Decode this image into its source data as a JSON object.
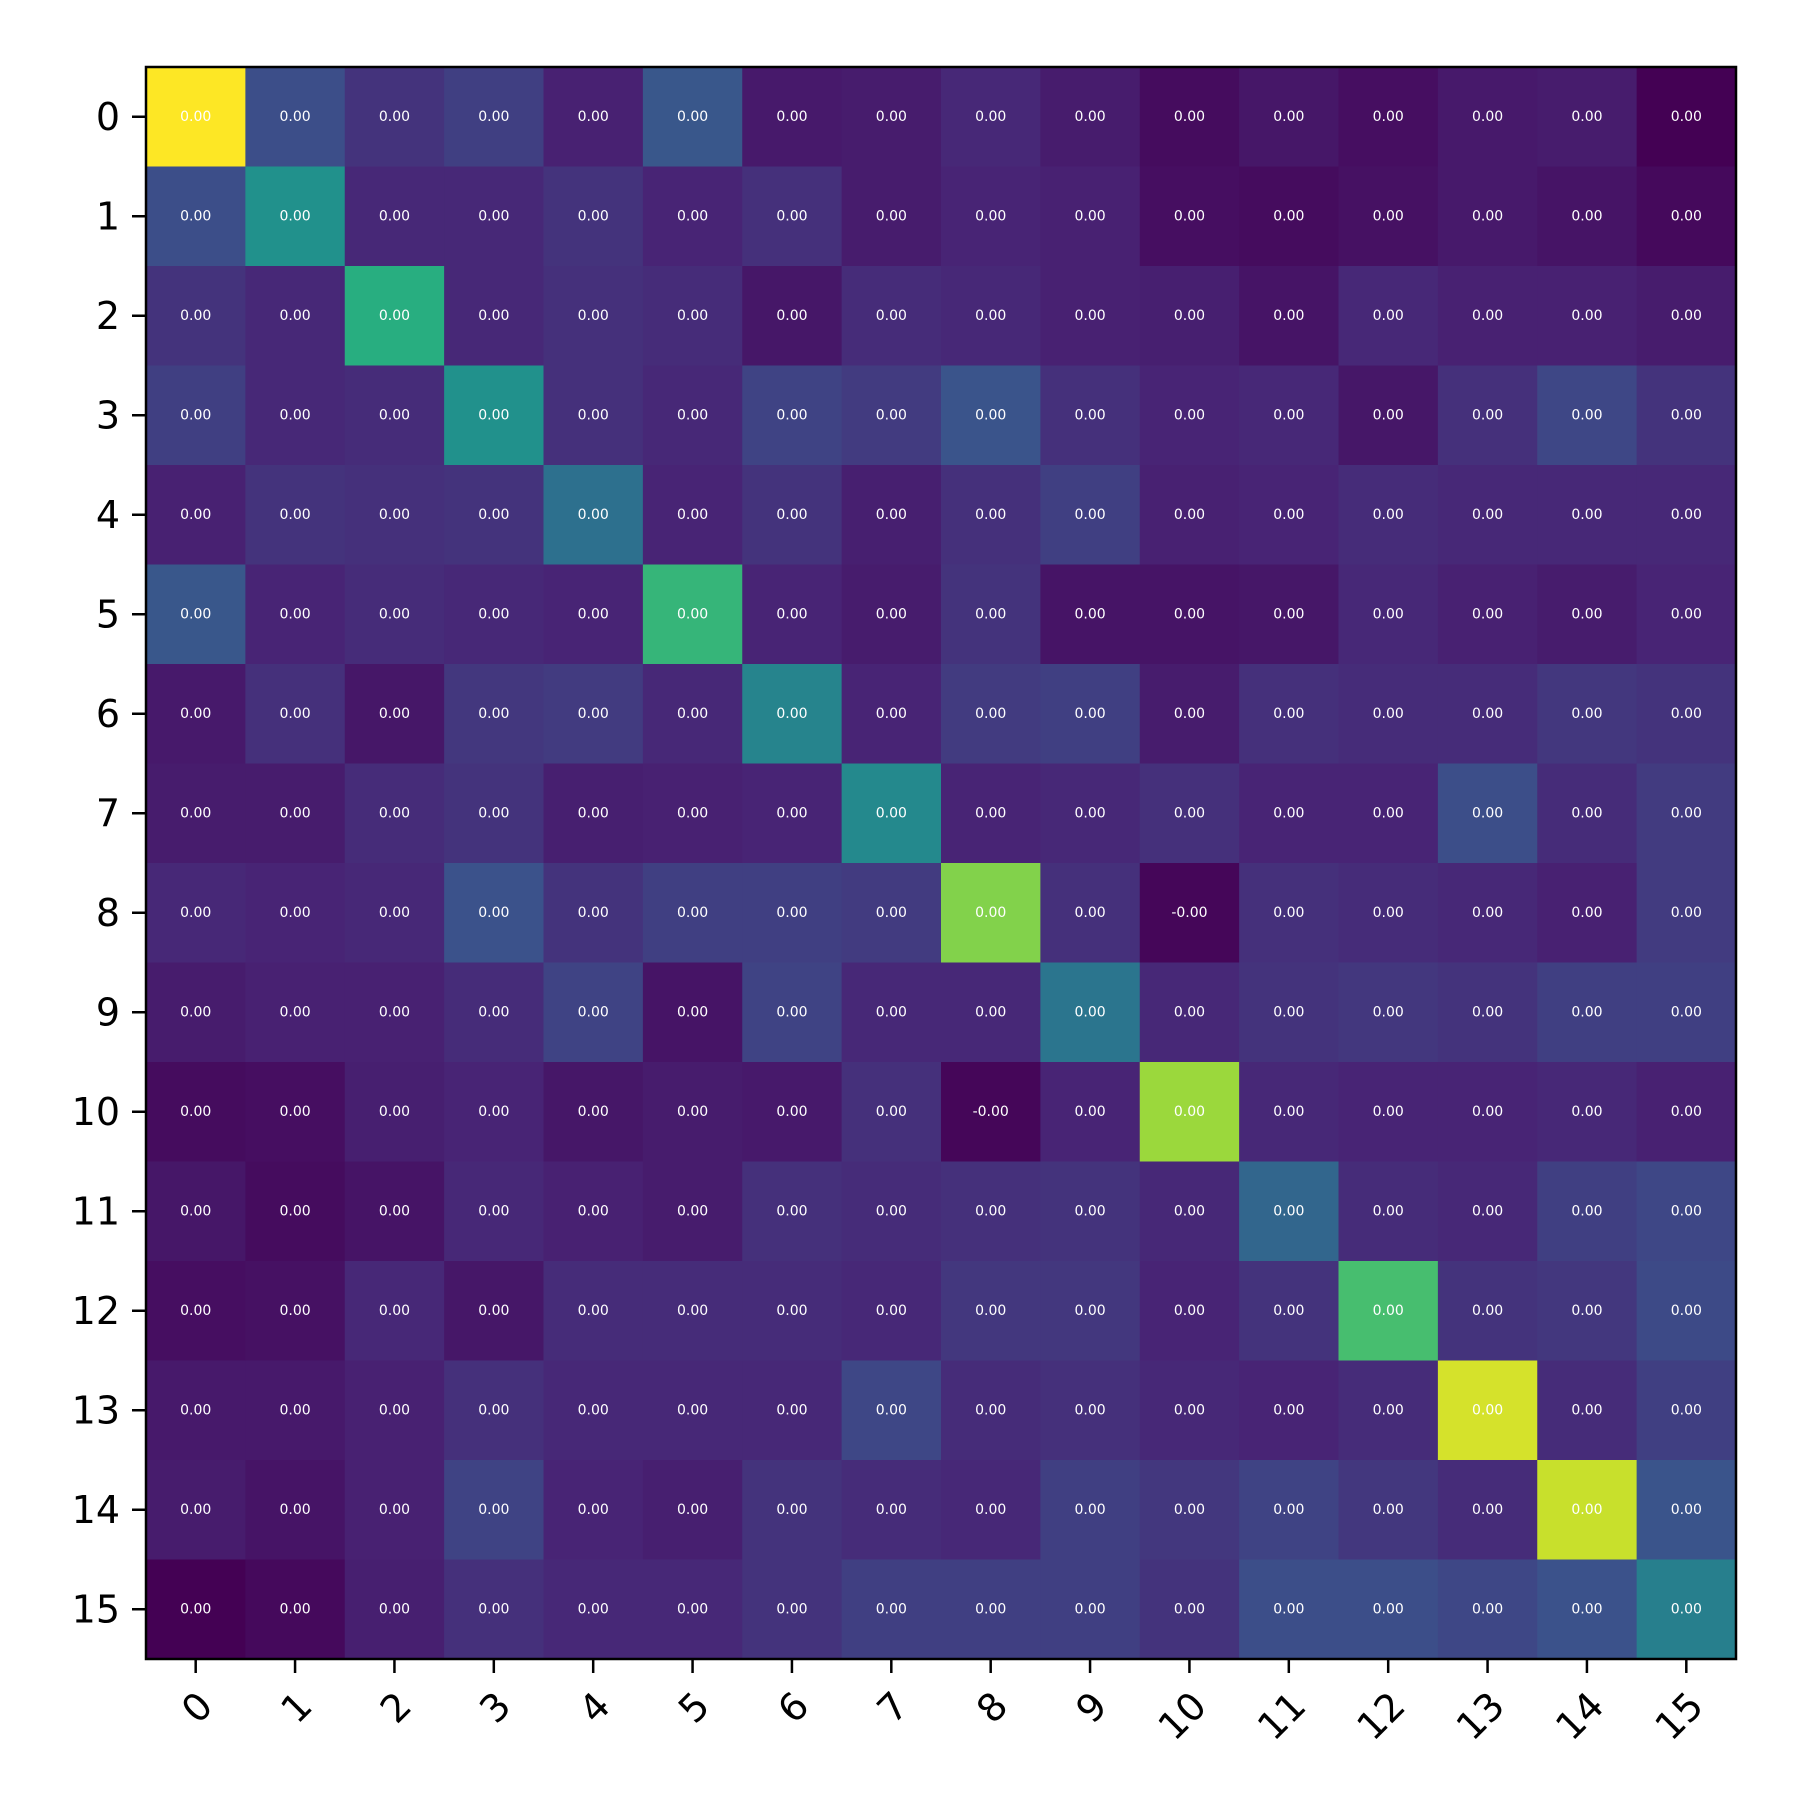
{
  "chart_data": {
    "type": "heatmap",
    "title": "",
    "xlabel": "",
    "ylabel": "",
    "colormap": "viridis",
    "x_categories": [
      "0",
      "1",
      "2",
      "3",
      "4",
      "5",
      "6",
      "7",
      "8",
      "9",
      "10",
      "11",
      "12",
      "13",
      "14",
      "15"
    ],
    "y_categories": [
      "0",
      "1",
      "2",
      "3",
      "4",
      "5",
      "6",
      "7",
      "8",
      "9",
      "10",
      "11",
      "12",
      "13",
      "14",
      "15"
    ],
    "color_levels": [
      [
        1.0,
        0.24,
        0.17,
        0.2,
        0.12,
        0.27,
        0.09,
        0.1,
        0.14,
        0.1,
        0.04,
        0.08,
        0.05,
        0.09,
        0.1,
        0.0
      ],
      [
        0.24,
        0.5,
        0.14,
        0.14,
        0.17,
        0.13,
        0.16,
        0.1,
        0.13,
        0.12,
        0.05,
        0.04,
        0.06,
        0.09,
        0.07,
        0.03
      ],
      [
        0.17,
        0.14,
        0.63,
        0.14,
        0.16,
        0.15,
        0.08,
        0.15,
        0.14,
        0.12,
        0.11,
        0.07,
        0.14,
        0.12,
        0.12,
        0.1
      ],
      [
        0.2,
        0.14,
        0.15,
        0.5,
        0.16,
        0.14,
        0.21,
        0.19,
        0.26,
        0.16,
        0.13,
        0.14,
        0.08,
        0.16,
        0.22,
        0.17
      ],
      [
        0.12,
        0.17,
        0.16,
        0.17,
        0.37,
        0.13,
        0.17,
        0.11,
        0.16,
        0.2,
        0.12,
        0.13,
        0.15,
        0.14,
        0.14,
        0.14
      ],
      [
        0.27,
        0.13,
        0.15,
        0.14,
        0.13,
        0.66,
        0.13,
        0.1,
        0.17,
        0.07,
        0.07,
        0.08,
        0.14,
        0.12,
        0.1,
        0.13
      ],
      [
        0.09,
        0.16,
        0.08,
        0.18,
        0.19,
        0.14,
        0.45,
        0.13,
        0.19,
        0.2,
        0.1,
        0.16,
        0.15,
        0.15,
        0.18,
        0.17
      ],
      [
        0.1,
        0.1,
        0.15,
        0.17,
        0.11,
        0.12,
        0.13,
        0.47,
        0.13,
        0.14,
        0.16,
        0.13,
        0.13,
        0.24,
        0.15,
        0.19
      ],
      [
        0.14,
        0.13,
        0.14,
        0.25,
        0.17,
        0.2,
        0.2,
        0.19,
        0.81,
        0.16,
        0.02,
        0.16,
        0.15,
        0.14,
        0.12,
        0.19
      ],
      [
        0.1,
        0.12,
        0.12,
        0.15,
        0.21,
        0.07,
        0.21,
        0.14,
        0.14,
        0.39,
        0.14,
        0.17,
        0.18,
        0.17,
        0.2,
        0.2
      ],
      [
        0.04,
        0.05,
        0.11,
        0.13,
        0.08,
        0.1,
        0.09,
        0.16,
        0.02,
        0.13,
        0.85,
        0.14,
        0.13,
        0.13,
        0.14,
        0.12
      ],
      [
        0.08,
        0.04,
        0.07,
        0.14,
        0.12,
        0.1,
        0.16,
        0.15,
        0.16,
        0.17,
        0.14,
        0.33,
        0.15,
        0.14,
        0.2,
        0.22
      ],
      [
        0.05,
        0.06,
        0.14,
        0.08,
        0.15,
        0.15,
        0.15,
        0.14,
        0.18,
        0.18,
        0.13,
        0.17,
        0.7,
        0.17,
        0.18,
        0.23
      ],
      [
        0.09,
        0.09,
        0.12,
        0.16,
        0.14,
        0.14,
        0.14,
        0.22,
        0.15,
        0.16,
        0.14,
        0.13,
        0.15,
        0.94,
        0.15,
        0.2
      ],
      [
        0.1,
        0.07,
        0.12,
        0.21,
        0.13,
        0.11,
        0.17,
        0.15,
        0.14,
        0.2,
        0.18,
        0.21,
        0.18,
        0.15,
        0.92,
        0.26
      ],
      [
        0.0,
        0.03,
        0.11,
        0.16,
        0.14,
        0.14,
        0.17,
        0.2,
        0.2,
        0.2,
        0.17,
        0.24,
        0.24,
        0.22,
        0.25,
        0.43
      ]
    ],
    "cell_labels": [
      [
        "0.00",
        "0.00",
        "0.00",
        "0.00",
        "0.00",
        "0.00",
        "0.00",
        "0.00",
        "0.00",
        "0.00",
        "0.00",
        "0.00",
        "0.00",
        "0.00",
        "0.00",
        "0.00"
      ],
      [
        "0.00",
        "0.00",
        "0.00",
        "0.00",
        "0.00",
        "0.00",
        "0.00",
        "0.00",
        "0.00",
        "0.00",
        "0.00",
        "0.00",
        "0.00",
        "0.00",
        "0.00",
        "0.00"
      ],
      [
        "0.00",
        "0.00",
        "0.00",
        "0.00",
        "0.00",
        "0.00",
        "0.00",
        "0.00",
        "0.00",
        "0.00",
        "0.00",
        "0.00",
        "0.00",
        "0.00",
        "0.00",
        "0.00"
      ],
      [
        "0.00",
        "0.00",
        "0.00",
        "0.00",
        "0.00",
        "0.00",
        "0.00",
        "0.00",
        "0.00",
        "0.00",
        "0.00",
        "0.00",
        "0.00",
        "0.00",
        "0.00",
        "0.00"
      ],
      [
        "0.00",
        "0.00",
        "0.00",
        "0.00",
        "0.00",
        "0.00",
        "0.00",
        "0.00",
        "0.00",
        "0.00",
        "0.00",
        "0.00",
        "0.00",
        "0.00",
        "0.00",
        "0.00"
      ],
      [
        "0.00",
        "0.00",
        "0.00",
        "0.00",
        "0.00",
        "0.00",
        "0.00",
        "0.00",
        "0.00",
        "0.00",
        "0.00",
        "0.00",
        "0.00",
        "0.00",
        "0.00",
        "0.00"
      ],
      [
        "0.00",
        "0.00",
        "0.00",
        "0.00",
        "0.00",
        "0.00",
        "0.00",
        "0.00",
        "0.00",
        "0.00",
        "0.00",
        "0.00",
        "0.00",
        "0.00",
        "0.00",
        "0.00"
      ],
      [
        "0.00",
        "0.00",
        "0.00",
        "0.00",
        "0.00",
        "0.00",
        "0.00",
        "0.00",
        "0.00",
        "0.00",
        "0.00",
        "0.00",
        "0.00",
        "0.00",
        "0.00",
        "0.00"
      ],
      [
        "0.00",
        "0.00",
        "0.00",
        "0.00",
        "0.00",
        "0.00",
        "0.00",
        "0.00",
        "0.00",
        "0.00",
        "-0.00",
        "0.00",
        "0.00",
        "0.00",
        "0.00",
        "0.00"
      ],
      [
        "0.00",
        "0.00",
        "0.00",
        "0.00",
        "0.00",
        "0.00",
        "0.00",
        "0.00",
        "0.00",
        "0.00",
        "0.00",
        "0.00",
        "0.00",
        "0.00",
        "0.00",
        "0.00"
      ],
      [
        "0.00",
        "0.00",
        "0.00",
        "0.00",
        "0.00",
        "0.00",
        "0.00",
        "0.00",
        "-0.00",
        "0.00",
        "0.00",
        "0.00",
        "0.00",
        "0.00",
        "0.00",
        "0.00"
      ],
      [
        "0.00",
        "0.00",
        "0.00",
        "0.00",
        "0.00",
        "0.00",
        "0.00",
        "0.00",
        "0.00",
        "0.00",
        "0.00",
        "0.00",
        "0.00",
        "0.00",
        "0.00",
        "0.00"
      ],
      [
        "0.00",
        "0.00",
        "0.00",
        "0.00",
        "0.00",
        "0.00",
        "0.00",
        "0.00",
        "0.00",
        "0.00",
        "0.00",
        "0.00",
        "0.00",
        "0.00",
        "0.00",
        "0.00"
      ],
      [
        "0.00",
        "0.00",
        "0.00",
        "0.00",
        "0.00",
        "0.00",
        "0.00",
        "0.00",
        "0.00",
        "0.00",
        "0.00",
        "0.00",
        "0.00",
        "0.00",
        "0.00",
        "0.00"
      ],
      [
        "0.00",
        "0.00",
        "0.00",
        "0.00",
        "0.00",
        "0.00",
        "0.00",
        "0.00",
        "0.00",
        "0.00",
        "0.00",
        "0.00",
        "0.00",
        "0.00",
        "0.00",
        "0.00"
      ],
      [
        "0.00",
        "0.00",
        "0.00",
        "0.00",
        "0.00",
        "0.00",
        "0.00",
        "0.00",
        "0.00",
        "0.00",
        "0.00",
        "0.00",
        "0.00",
        "0.00",
        "0.00",
        "0.00"
      ]
    ]
  }
}
